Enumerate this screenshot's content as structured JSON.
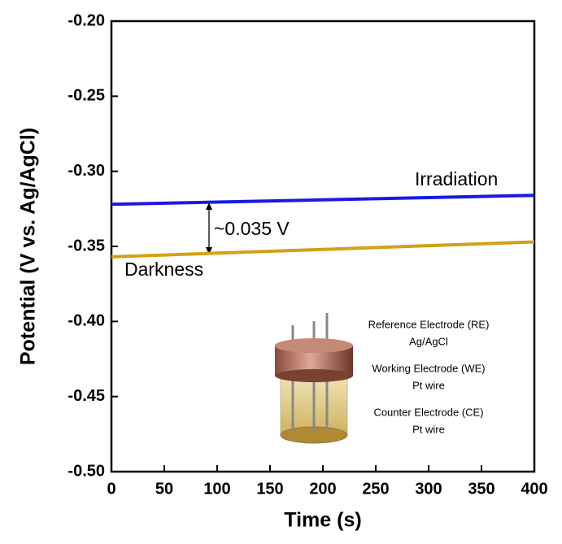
{
  "chart_data": {
    "type": "line",
    "xlabel": "Time (s)",
    "ylabel": "Potential (V vs. Ag/AgCl)",
    "x": [
      0,
      100,
      200,
      300,
      400
    ],
    "series": [
      {
        "name": "Irradiation",
        "color": "#1a1ae0",
        "values": [
          -0.322,
          -0.3205,
          -0.319,
          -0.3175,
          -0.316
        ]
      },
      {
        "name": "Darkness",
        "color": "#d4a017",
        "values": [
          -0.357,
          -0.3545,
          -0.352,
          -0.3495,
          -0.347
        ]
      }
    ],
    "xlim": [
      0,
      400
    ],
    "xticks": [
      0,
      50,
      100,
      150,
      200,
      250,
      300,
      350,
      400
    ],
    "ylim": [
      -0.5,
      -0.2
    ],
    "yticks": [
      {
        "value": -0.5,
        "label": "-0.50"
      },
      {
        "value": -0.45,
        "label": "-0.45"
      },
      {
        "value": -0.4,
        "label": "-0.40"
      },
      {
        "value": -0.35,
        "label": "-0.35"
      },
      {
        "value": -0.3,
        "label": "-0.30"
      },
      {
        "value": -0.25,
        "label": "-0.25"
      },
      {
        "value": -0.2,
        "label": "-0.20"
      }
    ],
    "annotation": "~0.035 V",
    "inset_labels": [
      "Reference Electrode (RE)",
      "Ag/AgCl",
      "Working Electrode (WE)",
      "Pt wire",
      "Counter Electrode (CE)",
      "Pt wire"
    ]
  }
}
